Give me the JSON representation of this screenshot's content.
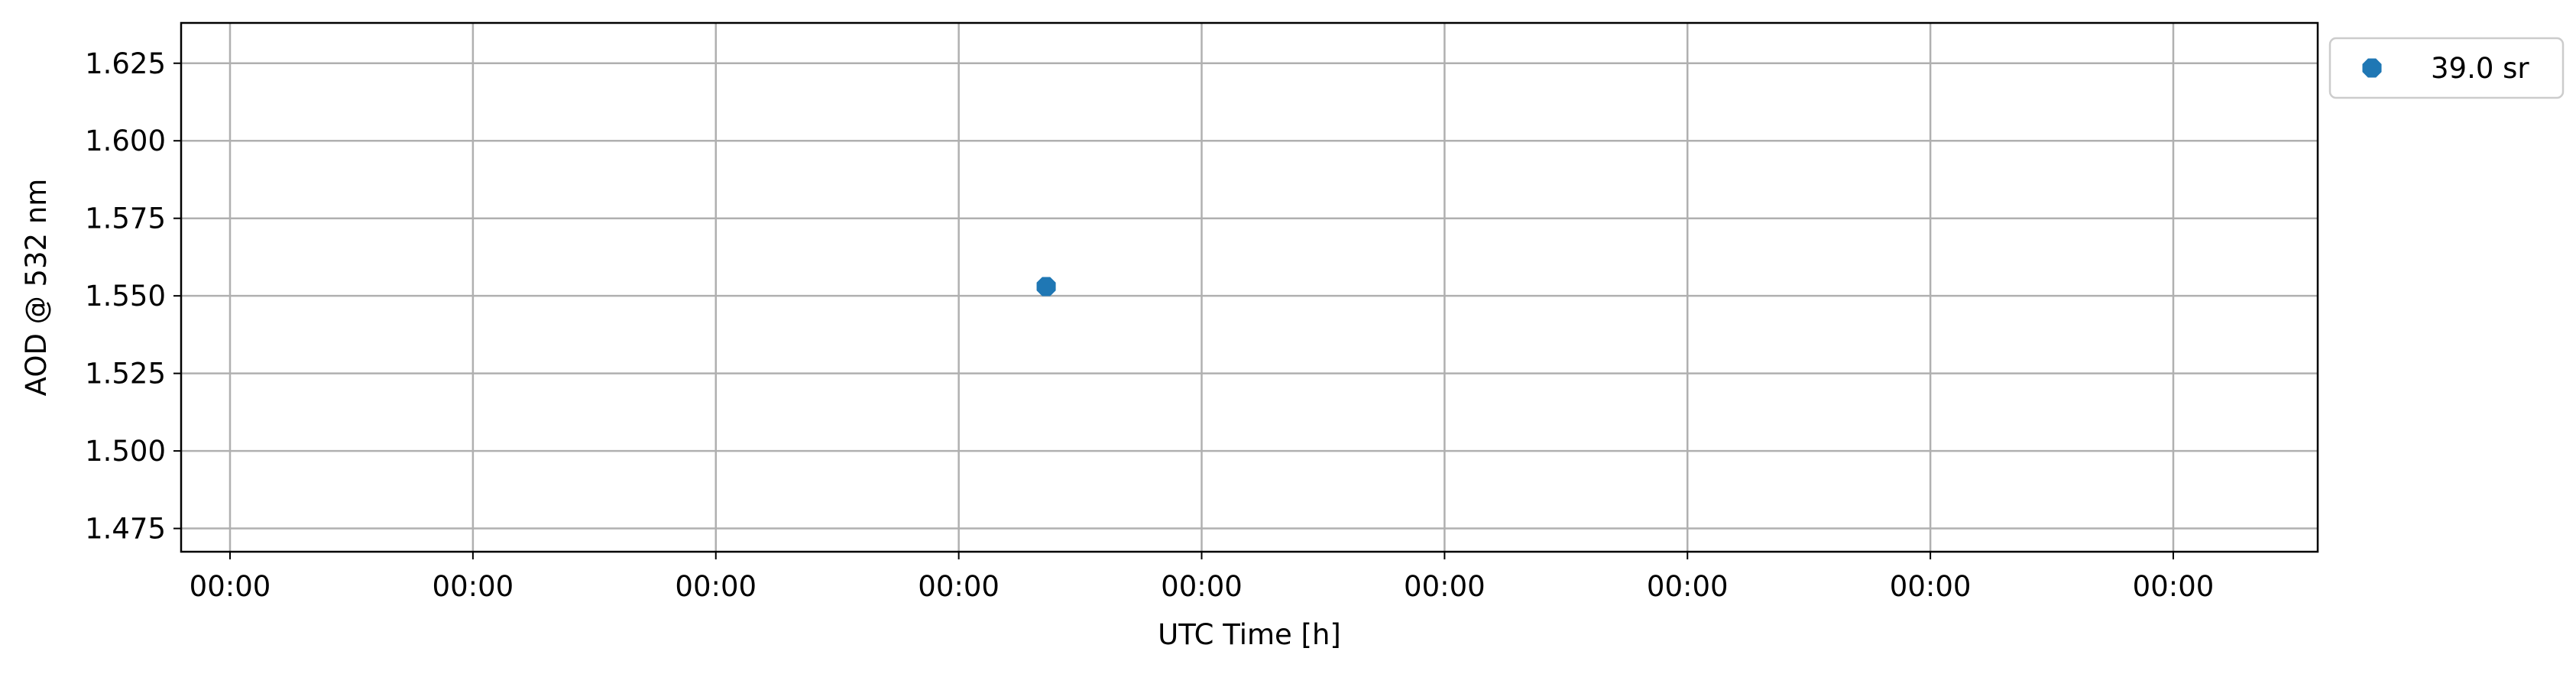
{
  "chart_data": {
    "type": "scatter",
    "xlabel": "UTC Time [h]",
    "ylabel": "AOD @ 532 nm",
    "x_tick_labels": [
      "00:00",
      "00:00",
      "00:00",
      "00:00",
      "00:00",
      "00:00",
      "00:00",
      "00:00",
      "00:00"
    ],
    "y_ticks": [
      1.475,
      1.5,
      1.525,
      1.55,
      1.575,
      1.6,
      1.625
    ],
    "y_tick_labels": [
      "1.475",
      "1.500",
      "1.525",
      "1.550",
      "1.575",
      "1.600",
      "1.625"
    ],
    "ylim": [
      1.4675,
      1.638
    ],
    "grid": true,
    "legend_position": "outside top-right",
    "series": [
      {
        "name": "39.0 sr",
        "color": "#1f77b4",
        "marker": "octagon",
        "points": [
          {
            "x_tick_fraction": 0.42,
            "y": 1.553
          }
        ]
      }
    ]
  }
}
